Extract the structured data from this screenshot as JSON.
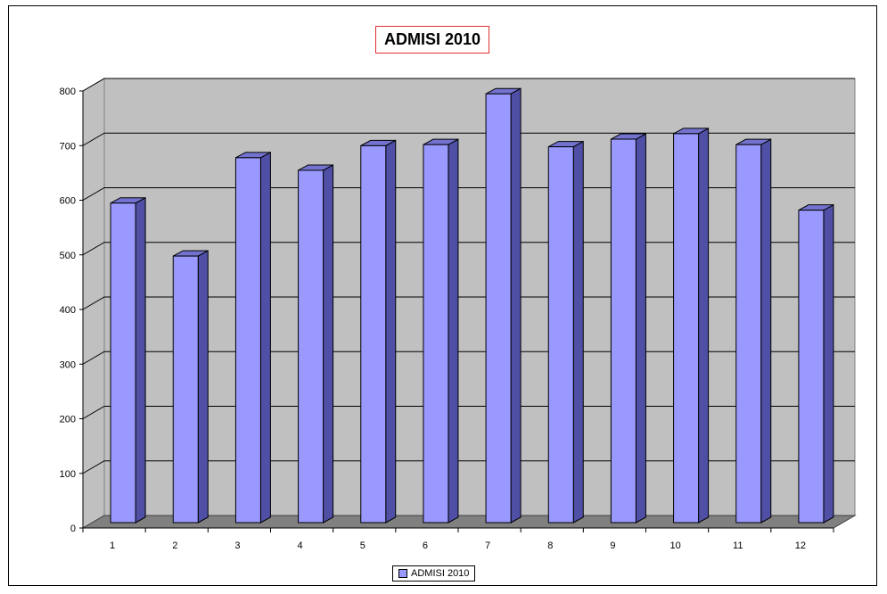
{
  "chart_data": {
    "type": "bar",
    "title": "ADMISI 2010",
    "categories": [
      "1",
      "2",
      "3",
      "4",
      "5",
      "6",
      "7",
      "8",
      "9",
      "10",
      "11",
      "12"
    ],
    "series": [
      {
        "name": "ADMISI 2010",
        "values": [
          585,
          488,
          668,
          645,
          690,
          692,
          785,
          688,
          702,
          712,
          692,
          572
        ]
      }
    ],
    "ylim": [
      0,
      800
    ],
    "yticks": [
      "0",
      "100",
      "200",
      "300",
      "400",
      "500",
      "600",
      "700",
      "800"
    ],
    "xlabel": "",
    "ylabel": "",
    "grid": true,
    "legend_position": "bottom",
    "colors": {
      "bar_front": "#9999ff",
      "bar_side": "#4f4fa6",
      "bar_top": "#7373cf",
      "wall": "#c0c0c0",
      "floor": "#808080",
      "title_border": "#e03030"
    }
  }
}
